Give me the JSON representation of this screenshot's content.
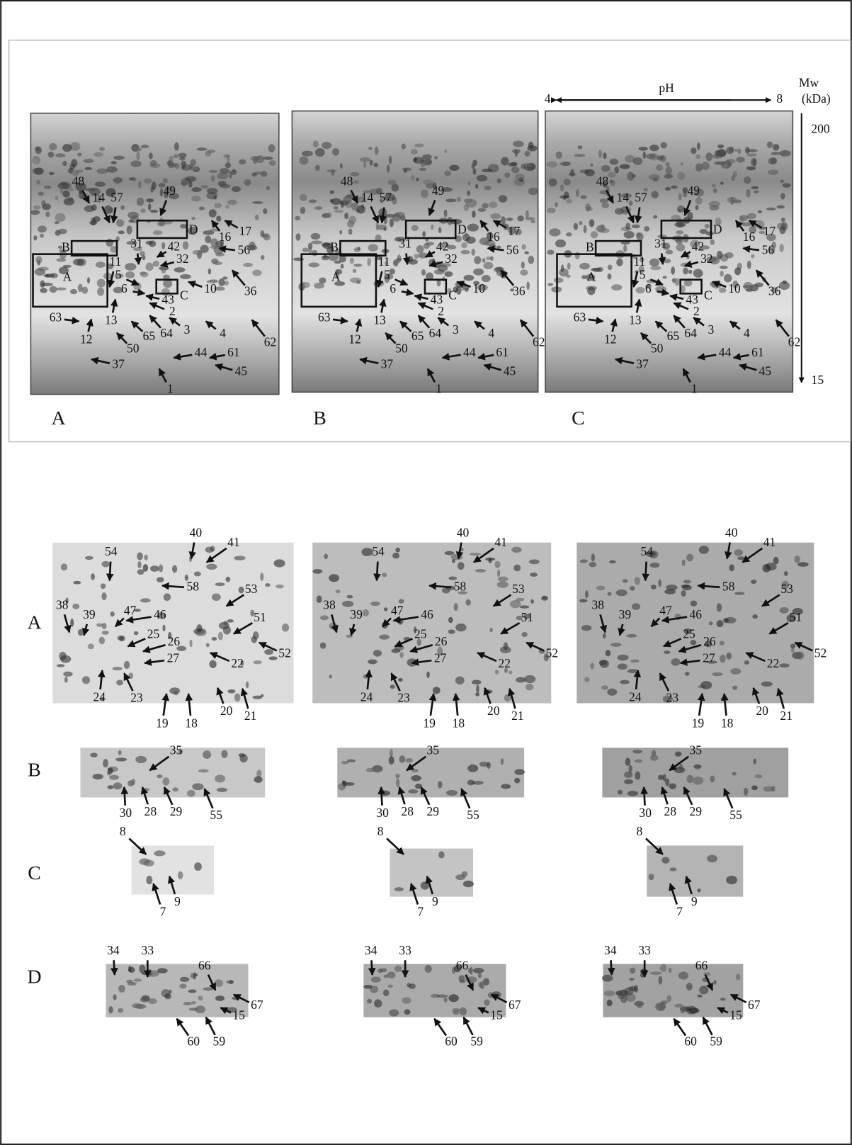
{
  "top_figure": {
    "gels": [
      {
        "panel_label": "A",
        "regions": [
          "A",
          "B",
          "C",
          "D"
        ],
        "spots": [
          "48",
          "14",
          "57",
          "49",
          "16",
          "17",
          "31",
          "42",
          "32",
          "56",
          "11",
          "5",
          "10",
          "36",
          "6",
          "43",
          "2",
          "63",
          "13",
          "3",
          "12",
          "65",
          "64",
          "4",
          "50",
          "62",
          "44",
          "61",
          "37",
          "45",
          "1"
        ]
      },
      {
        "panel_label": "B",
        "regions": [
          "A",
          "B",
          "C",
          "D"
        ],
        "spots": [
          "48",
          "14",
          "57",
          "49",
          "16",
          "17",
          "31",
          "42",
          "32",
          "56",
          "11",
          "5",
          "10",
          "36",
          "6",
          "43",
          "2",
          "63",
          "13",
          "3",
          "12",
          "65",
          "64",
          "4",
          "50",
          "62",
          "44",
          "61",
          "37",
          "45",
          "1"
        ]
      },
      {
        "panel_label": "C",
        "regions": [
          "A",
          "B",
          "C",
          "D"
        ],
        "spots": [
          "48",
          "14",
          "57",
          "49",
          "16",
          "17",
          "31",
          "42",
          "32",
          "56",
          "11",
          "5",
          "10",
          "36",
          "6",
          "43",
          "2",
          "63",
          "13",
          "3",
          "12",
          "65",
          "64",
          "4",
          "50",
          "62",
          "44",
          "61",
          "37",
          "45",
          "1"
        ]
      }
    ],
    "axes": {
      "ph_label": "pH",
      "ph_start": "4",
      "ph_end": "8",
      "mw_label": "Mw",
      "mw_unit": "(kDa)",
      "mw_top": "200",
      "mw_bottom": "15"
    }
  },
  "zoom_figure": {
    "rows": [
      {
        "label": "A",
        "columns": [
          {
            "spots": [
              "40",
              "41",
              "54",
              "58",
              "53",
              "38",
              "39",
              "47",
              "46",
              "51",
              "25",
              "26",
              "27",
              "22",
              "52",
              "24",
              "23",
              "19",
              "18",
              "20",
              "21"
            ]
          },
          {
            "spots": [
              "40",
              "41",
              "54",
              "58",
              "53",
              "38",
              "39",
              "47",
              "46",
              "51",
              "25",
              "26",
              "27",
              "22",
              "52",
              "24",
              "23",
              "19",
              "18",
              "20",
              "21"
            ]
          },
          {
            "spots": [
              "40",
              "41",
              "54",
              "58",
              "53",
              "38",
              "39",
              "47",
              "46",
              "51",
              "25",
              "26",
              "27",
              "22",
              "52",
              "24",
              "23",
              "19",
              "18",
              "20",
              "21"
            ]
          }
        ]
      },
      {
        "label": "B",
        "columns": [
          {
            "spots": [
              "35",
              "30",
              "28",
              "29",
              "55"
            ]
          },
          {
            "spots": [
              "35",
              "30",
              "28",
              "29",
              "55"
            ]
          },
          {
            "spots": [
              "35",
              "30",
              "28",
              "29",
              "55"
            ]
          }
        ]
      },
      {
        "label": "C",
        "columns": [
          {
            "spots": [
              "8",
              "7",
              "9"
            ]
          },
          {
            "spots": [
              "8",
              "7",
              "9"
            ]
          },
          {
            "spots": [
              "8",
              "7",
              "9"
            ]
          }
        ]
      },
      {
        "label": "D",
        "columns": [
          {
            "spots": [
              "34",
              "33",
              "66",
              "67",
              "15",
              "60",
              "59"
            ]
          },
          {
            "spots": [
              "34",
              "33",
              "66",
              "67",
              "15",
              "60",
              "59"
            ]
          },
          {
            "spots": [
              "34",
              "33",
              "66",
              "67",
              "15",
              "60",
              "59"
            ]
          }
        ]
      }
    ]
  }
}
